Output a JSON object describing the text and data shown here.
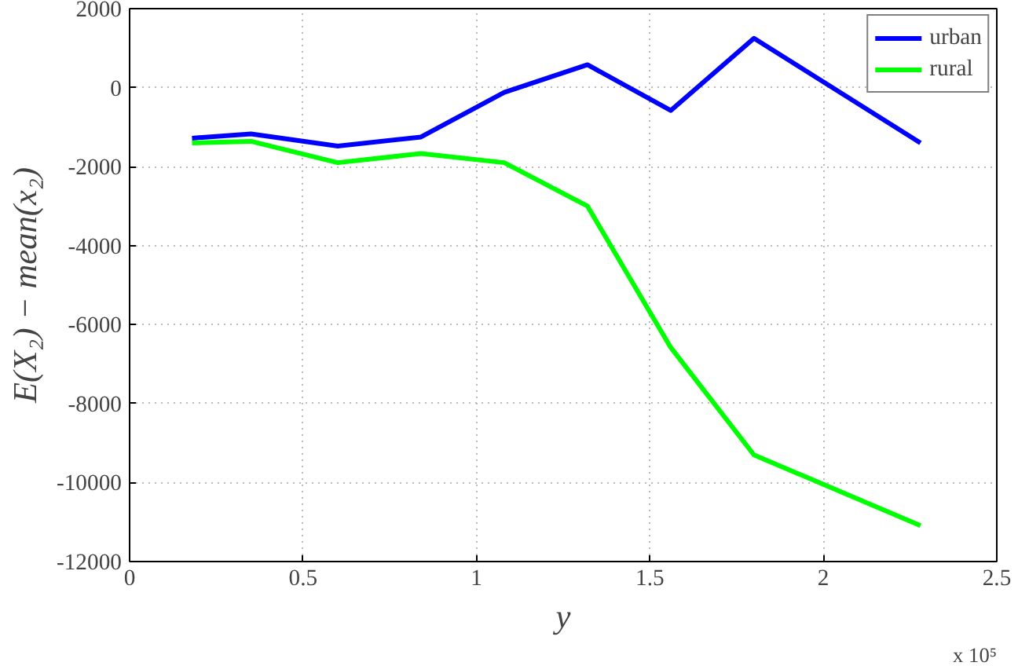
{
  "chart_data": {
    "type": "line",
    "xlabel": "y",
    "ylabel": "E(X₂) − mean(x₂)",
    "x": [
      0.18,
      0.35,
      0.6,
      0.84,
      1.08,
      1.32,
      1.56,
      1.8,
      2.28
    ],
    "series": [
      {
        "name": "urban",
        "color": "#0000ff",
        "values": [
          -1280,
          -1170,
          -1480,
          -1250,
          -120,
          580,
          -580,
          1250,
          -1400
        ]
      },
      {
        "name": "rural",
        "color": "#00ff00",
        "values": [
          -1400,
          -1360,
          -1900,
          -1670,
          -1900,
          -3000,
          -6580,
          -9300,
          -11090
        ]
      }
    ],
    "xlim": [
      0,
      2.5
    ],
    "xticks": [
      0,
      0.5,
      1,
      1.5,
      2,
      2.5
    ],
    "ylim": [
      -12000,
      2000
    ],
    "yticks": [
      -12000,
      -10000,
      -8000,
      -6000,
      -4000,
      -2000,
      0,
      2000
    ],
    "annotations": [
      "x 10⁵"
    ],
    "grid": true,
    "legend": "top right",
    "marker": "none",
    "line_style": "solid"
  }
}
